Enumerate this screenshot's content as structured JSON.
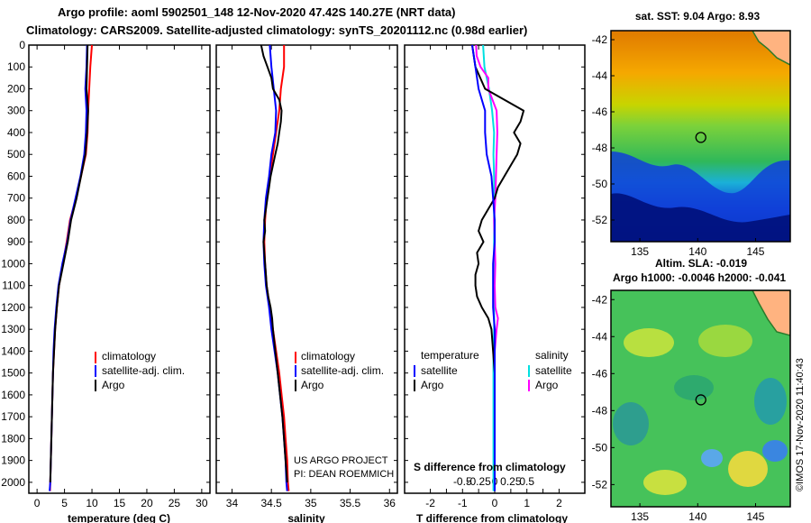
{
  "header": {
    "line1": "Argo profile: aoml 5902501_148 12-Nov-2020 47.42S 140.27E (NRT data)",
    "line2": "Climatology: CARS2009. Satellite-adjusted climatology: synTS_20201112.nc (0.98d earlier)"
  },
  "colors": {
    "climatology": "#ff0000",
    "satellite": "#0000ff",
    "argo": "#000000",
    "sat_salinity": "#00e0e0",
    "argo_salinity": "#ff00ff"
  },
  "chart_data": [
    {
      "type": "line",
      "xlabel": "temperature (deg C)",
      "xticks": [
        "0",
        "5",
        "10",
        "15",
        "20",
        "25",
        "30"
      ],
      "xlim": [
        -1.5,
        31.5
      ],
      "yticks": [
        "0",
        "100",
        "200",
        "300",
        "400",
        "500",
        "600",
        "700",
        "800",
        "900",
        "1000",
        "1100",
        "1200",
        "1300",
        "1400",
        "1500",
        "1600",
        "1700",
        "1800",
        "1900",
        "2000"
      ],
      "ylim": [
        2050,
        0
      ],
      "legend": [
        "climatology",
        "satellite-adj. clim.",
        "Argo"
      ],
      "series": [
        {
          "name": "climatology",
          "depth": [
            0,
            100,
            200,
            300,
            400,
            500,
            600,
            700,
            800,
            900,
            1000,
            1100,
            1200,
            1300,
            1400,
            1500,
            1600,
            1700,
            1800,
            1900,
            2000,
            2040
          ],
          "values": [
            10.0,
            9.7,
            9.5,
            9.3,
            9.2,
            8.9,
            8.0,
            7.1,
            6.0,
            5.4,
            4.7,
            4.0,
            3.6,
            3.3,
            3.1,
            2.9,
            2.8,
            2.7,
            2.6,
            2.5,
            2.4,
            2.35
          ]
        },
        {
          "name": "satellite-adj. clim.",
          "depth": [
            0,
            100,
            200,
            300,
            400,
            500,
            600,
            700,
            800,
            900,
            1000,
            1100,
            1200,
            1300,
            1400,
            1500,
            1600,
            1700,
            1800,
            1900,
            2000,
            2040
          ],
          "values": [
            9.1,
            9.0,
            8.8,
            9.0,
            8.9,
            8.6,
            7.9,
            7.0,
            6.1,
            5.5,
            4.6,
            3.9,
            3.5,
            3.2,
            3.0,
            2.9,
            2.8,
            2.7,
            2.6,
            2.5,
            2.4,
            2.3
          ]
        },
        {
          "name": "Argo",
          "depth": [
            0,
            100,
            200,
            300,
            400,
            500,
            600,
            700,
            800,
            900,
            1000,
            1100,
            1200,
            1300,
            1400,
            1500,
            1600,
            1700,
            1800,
            1900,
            2000
          ],
          "values": [
            9.2,
            9.1,
            9.0,
            9.3,
            9.1,
            8.8,
            8.0,
            7.2,
            6.2,
            5.6,
            4.8,
            4.0,
            3.6,
            3.3,
            3.1,
            2.9,
            2.8,
            2.7,
            2.6,
            2.5,
            2.4
          ]
        }
      ]
    },
    {
      "type": "line",
      "xlabel": "salinity",
      "xticks": [
        "34",
        "34.5",
        "35",
        "35.5",
        "36"
      ],
      "xlim": [
        33.8,
        36.1
      ],
      "yticks": [],
      "ylim": [
        2050,
        0
      ],
      "legend": [
        "climatology",
        "satellite-adj. clim.",
        "Argo"
      ],
      "series": [
        {
          "name": "climatology",
          "depth": [
            0,
            100,
            200,
            300,
            400,
            500,
            600,
            700,
            800,
            900,
            1000,
            1100,
            1200,
            1300,
            1400,
            1500,
            1600,
            1700,
            1800,
            1900,
            2000,
            2040
          ],
          "values": [
            34.66,
            34.66,
            34.62,
            34.6,
            34.56,
            34.52,
            34.48,
            34.44,
            34.42,
            34.41,
            34.42,
            34.44,
            34.48,
            34.52,
            34.56,
            34.6,
            34.63,
            34.66,
            34.68,
            34.7,
            34.71,
            34.72
          ]
        },
        {
          "name": "satellite-adj. clim.",
          "depth": [
            0,
            100,
            200,
            300,
            400,
            500,
            600,
            700,
            800,
            900,
            1000,
            1100,
            1200,
            1300,
            1400,
            1500,
            1600,
            1700,
            1800,
            1900,
            2000,
            2040
          ],
          "values": [
            34.48,
            34.5,
            34.53,
            34.56,
            34.55,
            34.5,
            34.47,
            34.43,
            34.41,
            34.4,
            34.41,
            34.43,
            34.47,
            34.5,
            34.54,
            34.58,
            34.61,
            34.64,
            34.66,
            34.68,
            34.69,
            34.7
          ]
        },
        {
          "name": "Argo",
          "depth": [
            0,
            50,
            100,
            150,
            200,
            250,
            300,
            350,
            400,
            450,
            500,
            550,
            600,
            650,
            700,
            750,
            800,
            850,
            900,
            950,
            1000,
            1050,
            1100,
            1150,
            1200,
            1250,
            1300,
            1400,
            1500,
            1600,
            1700,
            1800,
            1900,
            2000
          ],
          "values": [
            34.37,
            34.4,
            34.45,
            34.5,
            34.52,
            34.6,
            34.63,
            34.62,
            34.6,
            34.58,
            34.55,
            34.52,
            34.49,
            34.47,
            34.45,
            34.43,
            34.41,
            34.42,
            34.4,
            34.41,
            34.42,
            34.43,
            34.44,
            34.46,
            34.49,
            34.51,
            34.52,
            34.55,
            34.58,
            34.61,
            34.64,
            34.66,
            34.68,
            34.7
          ]
        }
      ]
    },
    {
      "type": "line",
      "xlabel": "T difference from climatology",
      "top_label": "S difference from climatology",
      "xticks": [
        "-2",
        "-1.5",
        "-1",
        "-0.5",
        "0",
        "0.5",
        "1",
        "1.5",
        "2"
      ],
      "xlim": [
        -2.8,
        2.8
      ],
      "s_ticks": [
        "-0.5",
        "-0.25",
        "0",
        "0.25",
        "0.5"
      ],
      "yticks": [],
      "ylim": [
        2050,
        0
      ],
      "legend_temperature": {
        "heading": "temperature",
        "items": [
          "satellite",
          "Argo"
        ]
      },
      "legend_salinity": {
        "heading": "salinity",
        "items": [
          "satellite",
          "Argo"
        ]
      },
      "series": [
        {
          "name": "satellite",
          "group": "temperature",
          "depth": [
            0,
            100,
            200,
            300,
            400,
            500,
            600,
            700,
            800,
            900,
            1000,
            1100,
            1200,
            1300,
            1400,
            1500,
            1600,
            1700,
            1800,
            1900,
            2000,
            2040
          ],
          "values": [
            -0.7,
            -0.6,
            -0.5,
            -0.3,
            -0.3,
            -0.25,
            -0.1,
            -0.05,
            0.0,
            0.0,
            -0.05,
            -0.05,
            -0.05,
            0.0,
            0.0,
            0.0,
            0.0,
            0.0,
            0.0,
            0.0,
            0.0,
            0.0
          ]
        },
        {
          "name": "Argo",
          "group": "temperature",
          "depth": [
            0,
            100,
            200,
            250,
            300,
            350,
            400,
            450,
            500,
            550,
            600,
            650,
            700,
            750,
            800,
            850,
            900,
            950,
            1000,
            1050,
            1100,
            1150,
            1200,
            1250,
            1300,
            1400,
            1500,
            1600,
            1700,
            1800,
            1900,
            2000
          ],
          "values": [
            -0.7,
            -0.6,
            -0.3,
            0.3,
            0.9,
            0.8,
            0.6,
            0.8,
            0.7,
            0.5,
            0.3,
            0.1,
            0.0,
            -0.2,
            -0.4,
            -0.5,
            -0.35,
            -0.55,
            -0.5,
            -0.6,
            -0.6,
            -0.55,
            -0.4,
            -0.2,
            -0.1,
            -0.05,
            0.0,
            0.0,
            0.0,
            0.0,
            0.0,
            0.0
          ]
        },
        {
          "name": "satellite",
          "group": "salinity",
          "depth": [
            0,
            100,
            200,
            300,
            400,
            500,
            600,
            700,
            800,
            900,
            1000,
            1100,
            1200,
            1300,
            1400,
            1500,
            1600,
            1700,
            1800,
            1900,
            2000,
            2040
          ],
          "values": [
            -0.18,
            -0.16,
            -0.09,
            -0.04,
            -0.01,
            -0.02,
            -0.01,
            -0.01,
            -0.01,
            -0.01,
            -0.01,
            -0.01,
            -0.01,
            -0.01,
            -0.02,
            -0.02,
            -0.02,
            -0.02,
            -0.02,
            -0.02,
            -0.02,
            -0.02
          ]
        },
        {
          "name": "Argo",
          "group": "salinity",
          "depth": [
            0,
            50,
            100,
            150,
            200,
            300,
            400,
            500,
            600,
            700,
            800,
            900,
            1000,
            1100,
            1200,
            1250,
            1300,
            1400,
            1500,
            1600,
            1700,
            1800,
            1900,
            2000
          ],
          "values": [
            -0.29,
            -0.28,
            -0.22,
            -0.1,
            -0.1,
            0.03,
            0.04,
            0.03,
            0.02,
            0.01,
            -0.01,
            0.0,
            0.01,
            0.0,
            0.01,
            0.05,
            0.03,
            0.0,
            0.0,
            0.0,
            0.0,
            0.0,
            0.0,
            0.0
          ]
        }
      ]
    },
    {
      "type": "heatmap",
      "title": "sat. SST: 9.04 Argo: 8.93",
      "xticks": [
        "135",
        "140",
        "145"
      ],
      "yticks": [
        "-42",
        "-44",
        "-46",
        "-48",
        "-50",
        "-52"
      ],
      "xlim": [
        132.5,
        148
      ],
      "ylim": [
        -53.2,
        -41.5
      ],
      "marker": {
        "lon": 140.27,
        "lat": -47.42
      }
    },
    {
      "type": "heatmap",
      "title": "Altim. SLA: -0.019",
      "subtitle": "Argo h1000: -0.0046 h2000: -0.041",
      "xticks": [
        "135",
        "140",
        "145"
      ],
      "yticks": [
        "-42",
        "-44",
        "-46",
        "-48",
        "-50",
        "-52"
      ],
      "xlim": [
        132.5,
        148
      ],
      "ylim": [
        -53.2,
        -41.5
      ],
      "marker": {
        "lon": 140.27,
        "lat": -47.42
      }
    }
  ],
  "credits": {
    "project": "US ARGO PROJECT",
    "pi": "PI: DEAN ROEMMICH",
    "stamp": "©IMOS 17-Nov-2020 11:40:43"
  }
}
